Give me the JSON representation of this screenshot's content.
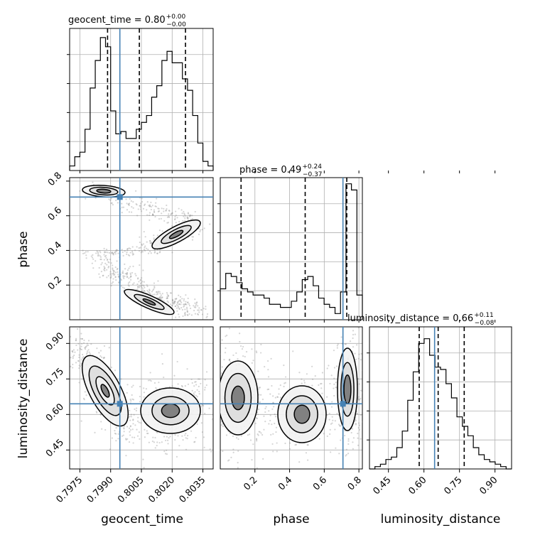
{
  "chart_data": {
    "type": "corner",
    "parameters": [
      "geocent_time",
      "phase",
      "luminosity_distance"
    ],
    "truths": {
      "geocent_time": 0.79945,
      "phase": 0.708,
      "luminosity_distance": 0.645
    },
    "titles": [
      {
        "text": "geocent_time = 0.80",
        "sup": "+0.00",
        "sub": "−0.00"
      },
      {
        "text": "phase = 0.49",
        "sup": "+0.24",
        "sub": "−0.37"
      },
      {
        "text": "luminosity_distance = 0.66",
        "sup": "+0.11",
        "sub": "−0.08"
      }
    ],
    "axis_labels": {
      "x": [
        "geocent_time",
        "phase",
        "luminosity_distance"
      ],
      "y": [
        "phase",
        "luminosity_distance"
      ]
    },
    "xlim": {
      "geocent_time": [
        0.797,
        0.804
      ],
      "phase": [
        0.0,
        0.82
      ],
      "luminosity_distance": [
        0.37,
        0.97
      ]
    },
    "ticks": {
      "geocent_time": [
        {
          "v": 0.7975,
          "label": "0.7975"
        },
        {
          "v": 0.799,
          "label": "0.7990"
        },
        {
          "v": 0.8005,
          "label": "0.8005"
        },
        {
          "v": 0.802,
          "label": "0.8020"
        },
        {
          "v": 0.8035,
          "label": "0.8035"
        }
      ],
      "phase": [
        {
          "v": 0.2,
          "label": "0.2"
        },
        {
          "v": 0.4,
          "label": "0.4"
        },
        {
          "v": 0.6,
          "label": "0.6"
        },
        {
          "v": 0.8,
          "label": "0.8"
        }
      ],
      "luminosity_distance": [
        {
          "v": 0.45,
          "label": "0.45"
        },
        {
          "v": 0.6,
          "label": "0.60"
        },
        {
          "v": 0.75,
          "label": "0.75"
        },
        {
          "v": 0.9,
          "label": "0.90"
        }
      ]
    },
    "diag_histograms": [
      {
        "param": "geocent_time",
        "quantiles": [
          0.79885,
          0.8004,
          0.80265
        ],
        "counts": [
          2,
          6,
          8,
          18,
          36,
          48,
          58,
          54,
          26,
          16,
          17,
          14,
          14,
          18,
          21,
          24,
          32,
          37,
          48,
          52,
          47,
          47,
          40,
          35,
          24,
          12,
          4,
          2
        ],
        "ymax": 62
      },
      {
        "param": "phase",
        "quantiles": [
          0.12,
          0.49,
          0.73
        ],
        "counts": [
          10,
          15,
          14,
          12,
          10,
          9,
          8,
          8,
          7,
          5,
          5,
          4,
          4,
          6,
          9,
          13,
          14,
          11,
          7,
          5,
          4,
          2,
          9,
          44,
          42,
          8
        ],
        "ymax": 46
      },
      {
        "param": "luminosity_distance",
        "quantiles": [
          0.58,
          0.66,
          0.77
        ],
        "counts": [
          0,
          1,
          2,
          4,
          5,
          9,
          16,
          29,
          41,
          53,
          55,
          48,
          43,
          42,
          36,
          30,
          22,
          18,
          14,
          9,
          6,
          4,
          3,
          2,
          1,
          0
        ],
        "ymax": 60
      }
    ],
    "grid": true,
    "colors": {
      "truth": "#4682b4",
      "quantile": "#000000",
      "contour": "#000000",
      "density": "#000000"
    }
  }
}
